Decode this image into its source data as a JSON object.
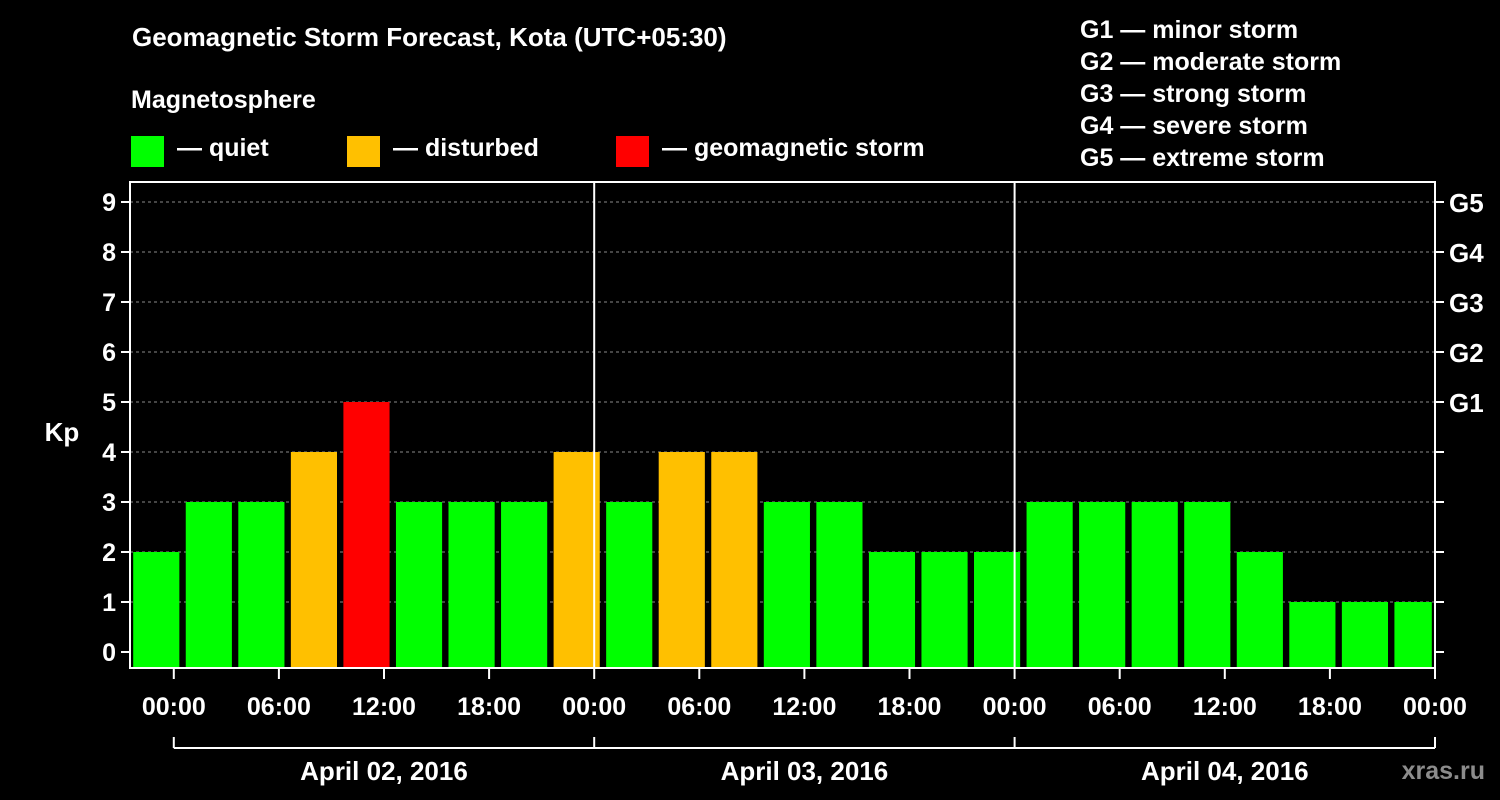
{
  "title": "Geomagnetic Storm Forecast, Kota (UTC+05:30)",
  "legend": {
    "heading": "Magnetosphere",
    "items": [
      {
        "label": "— quiet",
        "color": "#00ff00"
      },
      {
        "label": "— disturbed",
        "color": "#ffc000"
      },
      {
        "label": "— geomagnetic storm",
        "color": "#ff0000"
      }
    ]
  },
  "storm_levels": [
    "G1 — minor storm",
    "G2 — moderate storm",
    "G3 — strong storm",
    "G4 — severe storm",
    "G5 — extreme storm"
  ],
  "watermark": "xras.ru",
  "chart_data": {
    "type": "bar",
    "ylabel": "Kp",
    "ylim": [
      0,
      9
    ],
    "yticks": [
      0,
      1,
      2,
      3,
      4,
      5,
      6,
      7,
      8,
      9
    ],
    "right_axis": [
      {
        "kp": 5,
        "label": "G1"
      },
      {
        "kp": 6,
        "label": "G2"
      },
      {
        "kp": 7,
        "label": "G3"
      },
      {
        "kp": 8,
        "label": "G4"
      },
      {
        "kp": 9,
        "label": "G5"
      }
    ],
    "x_range_hours": [
      -2.5,
      72
    ],
    "xtick_hours": [
      0,
      6,
      12,
      18,
      24,
      30,
      36,
      42,
      48,
      54,
      60,
      66,
      72
    ],
    "xtick_labels": [
      "00:00",
      "06:00",
      "12:00",
      "18:00",
      "00:00",
      "06:00",
      "12:00",
      "18:00",
      "00:00",
      "06:00",
      "12:00",
      "18:00",
      "00:00"
    ],
    "day_labels": [
      "April 02, 2016",
      "April 03, 2016",
      "April 04, 2016"
    ],
    "day_boundaries_hours": [
      24,
      48
    ],
    "grid_y": true,
    "period_hours": 3,
    "bar_start_hours": [
      -2.5,
      0.5,
      3.5,
      6.5,
      9.5,
      12.5,
      15.5,
      18.5,
      21.5,
      24.5,
      27.5,
      30.5,
      33.5,
      36.5,
      39.5,
      42.5,
      45.5,
      48.5,
      51.5,
      54.5,
      57.5,
      60.5,
      63.5,
      66.5,
      69.5
    ],
    "values": [
      2,
      3,
      3,
      4,
      5,
      3,
      3,
      3,
      4,
      3,
      4,
      4,
      3,
      3,
      2,
      2,
      2,
      3,
      3,
      3,
      3,
      2,
      1,
      1,
      1
    ],
    "colors": {
      "quiet": "#00ff00",
      "disturbed": "#ffc000",
      "storm": "#ff0000"
    }
  }
}
